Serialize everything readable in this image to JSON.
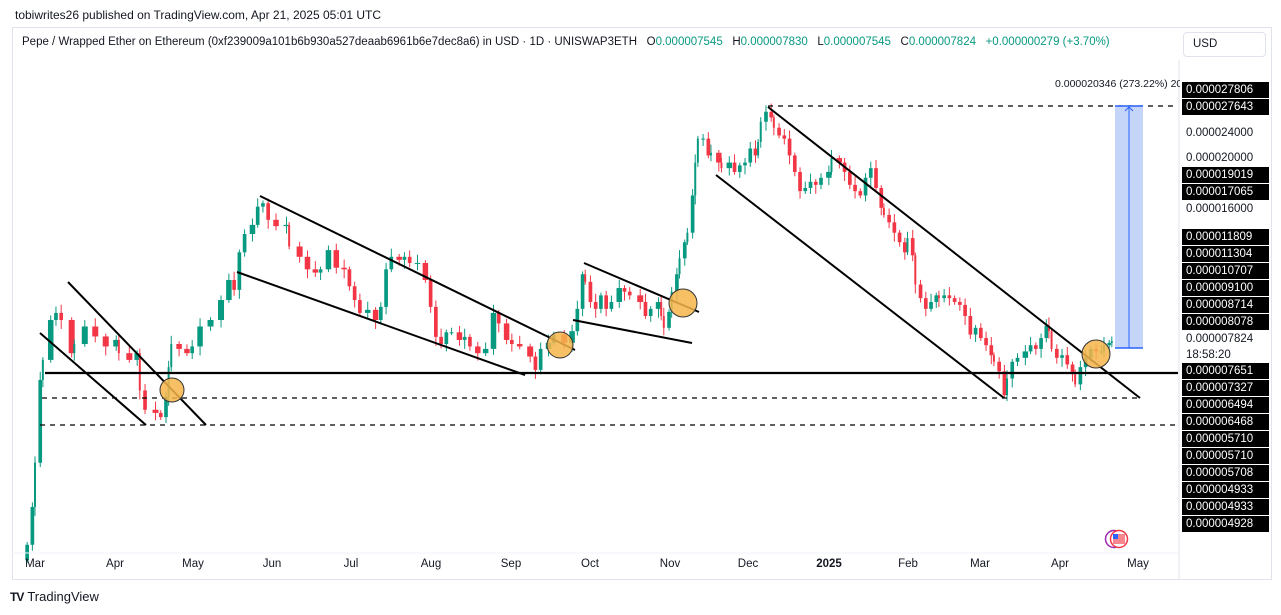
{
  "publish_line": "tobiwrites26 published on TradingView.com, Apr 21, 2025 05:01 UTC",
  "legend": {
    "symbol": "Pepe / Wrapped Ether on Ethereum (0xf239009a101b6b930a527deaab6961b6e7dec8a6) in USD · 1D · UNISWAP3ETH",
    "o_label": "O",
    "o_value": "0.000007545",
    "h_label": "H",
    "h_value": "0.000007830",
    "l_label": "L",
    "l_value": "0.000007545",
    "c_label": "C",
    "c_value": "0.000007824",
    "change": "+0.000000279 (+3.70%)"
  },
  "currency_button": "USD",
  "measure_label": "0.000020346 (273.22%) 20",
  "countdown": "18:58:20",
  "logo_text": "TradingView",
  "colors": {
    "up": "#089981",
    "down": "#f23645",
    "measure_fill": "#c5d5fa",
    "measure_line": "#2962ff",
    "circle": "#f7b54a"
  },
  "chart_data": {
    "type": "candlestick",
    "title": "Pepe / Wrapped Ether on Ethereum in USD · 1D",
    "scale": "log",
    "x_start_date": "2024-03-01",
    "x_ticks": [
      "Mar",
      "Apr",
      "May",
      "Jun",
      "Jul",
      "Aug",
      "Sep",
      "Oct",
      "Nov",
      "Dec",
      "2025",
      "Feb",
      "Mar",
      "Apr",
      "May"
    ],
    "price_axis_labels": [
      {
        "text": "0.000027806",
        "boxed": true
      },
      {
        "text": "0.000027643",
        "boxed": true
      },
      {
        "text": "0.000024000",
        "boxed": false
      },
      {
        "text": "0.000020000",
        "boxed": false
      },
      {
        "text": "0.000019019",
        "boxed": true
      },
      {
        "text": "0.000017065",
        "boxed": true
      },
      {
        "text": "0.000016000",
        "boxed": false
      },
      {
        "text": "0.000011809",
        "boxed": true
      },
      {
        "text": "0.000011304",
        "boxed": true
      },
      {
        "text": "0.000010707",
        "boxed": true
      },
      {
        "text": "0.000009100",
        "boxed": true
      },
      {
        "text": "0.000008714",
        "boxed": true
      },
      {
        "text": "0.000008078",
        "boxed": true
      },
      {
        "text": "0.000007824",
        "boxed": false
      },
      {
        "text": "0.000007651",
        "boxed": true
      },
      {
        "text": "0.000007327",
        "boxed": true
      },
      {
        "text": "0.000006494",
        "boxed": true
      },
      {
        "text": "0.000006468",
        "boxed": true
      },
      {
        "text": "0.000005710",
        "boxed": true
      },
      {
        "text": "0.000005710",
        "boxed": true
      },
      {
        "text": "0.000005708",
        "boxed": true
      },
      {
        "text": "0.000004933",
        "boxed": true
      },
      {
        "text": "0.000004933",
        "boxed": true
      },
      {
        "text": "0.000004928",
        "boxed": true
      }
    ],
    "points_day_close": [
      [
        -3,
        2.62e-06
      ],
      [
        -1,
        3.21e-06
      ],
      [
        0,
        4.07e-06
      ],
      [
        2,
        6.35e-06
      ],
      [
        3,
        7.07e-06
      ],
      [
        6,
        8.76e-06
      ],
      [
        8,
        9.1e-06
      ],
      [
        10,
        8.76e-06
      ],
      [
        14,
        7.33e-06
      ],
      [
        15,
        7.7e-06
      ],
      [
        19,
        8.46e-06
      ],
      [
        23,
        8.02e-06
      ],
      [
        27,
        7.6e-06
      ],
      [
        31,
        7.87e-06
      ],
      [
        32,
        7.33e-06
      ],
      [
        36,
        7.07e-06
      ],
      [
        39,
        7.33e-06
      ],
      [
        40,
        6e-06
      ],
      [
        42,
        5.41e-06
      ],
      [
        46,
        5.32e-06
      ],
      [
        48,
        5.2e-06
      ],
      [
        50,
        5.8e-06
      ],
      [
        51,
        6.8e-06
      ],
      [
        52,
        7.7e-06
      ],
      [
        55,
        7.5e-06
      ],
      [
        58,
        7.33e-06
      ],
      [
        60,
        7.6e-06
      ],
      [
        63,
        8.46e-06
      ],
      [
        67,
        8.76e-06
      ],
      [
        71,
        9.75e-06
      ],
      [
        74,
        1.086e-05
      ],
      [
        76,
        1.03e-05
      ],
      [
        78,
        1.26e-05
      ],
      [
        80,
        1.39e-05
      ],
      [
        83,
        1.46e-05
      ],
      [
        85,
        1.61e-05
      ],
      [
        87,
        1.64e-05
      ],
      [
        89,
        1.5e-05
      ],
      [
        92,
        1.45e-05
      ],
      [
        96,
        1.46e-05
      ],
      [
        97,
        1.3e-05
      ],
      [
        101,
        1.23e-05
      ],
      [
        104,
        1.15e-05
      ],
      [
        107,
        1.13e-05
      ],
      [
        109,
        1.15e-05
      ],
      [
        112,
        1.275e-05
      ],
      [
        115,
        1.16e-05
      ],
      [
        118,
        1.15e-05
      ],
      [
        120,
        1.05e-05
      ],
      [
        122,
        9.75e-06
      ],
      [
        124,
        9.1e-06
      ],
      [
        127,
        9.25e-06
      ],
      [
        130,
        8.76e-06
      ],
      [
        132,
        9.4e-06
      ],
      [
        134,
        1.15e-05
      ],
      [
        136,
        1.23e-05
      ],
      [
        139,
        1.21e-05
      ],
      [
        141,
        1.23e-05
      ],
      [
        143,
        1.19e-05
      ],
      [
        146,
        1.19e-05
      ],
      [
        149,
        1.086e-05
      ],
      [
        151,
        9.4e-06
      ],
      [
        153,
        8e-06
      ],
      [
        155,
        7.7e-06
      ],
      [
        157,
        8.2e-06
      ],
      [
        159,
        8.2e-06
      ],
      [
        162,
        7.87e-06
      ],
      [
        164,
        8e-06
      ],
      [
        166,
        7.6e-06
      ],
      [
        169,
        7.33e-06
      ],
      [
        172,
        7.5e-06
      ],
      [
        175,
        9.1e-06
      ],
      [
        177,
        8.6e-06
      ],
      [
        180,
        7.87e-06
      ],
      [
        182,
        7.7e-06
      ],
      [
        185,
        7.6e-06
      ],
      [
        189,
        7.2e-06
      ],
      [
        191,
        6.7e-06
      ],
      [
        193,
        7.5e-06
      ],
      [
        196,
        7.75e-06
      ],
      [
        198,
        8.1e-06
      ],
      [
        202,
        7.75e-06
      ],
      [
        205,
        8.25e-06
      ],
      [
        207,
        9.3e-06
      ],
      [
        209,
        1.12e-05
      ],
      [
        210,
        1.075e-05
      ],
      [
        212,
        9.65e-06
      ],
      [
        214,
        9.3e-06
      ],
      [
        216,
        1e-05
      ],
      [
        218,
        9.3e-06
      ],
      [
        220,
        9.65e-06
      ],
      [
        223,
        1.04e-05
      ],
      [
        225,
        1.02e-05
      ],
      [
        227,
        1e-05
      ],
      [
        231,
        9.65e-06
      ],
      [
        233,
        8.95e-06
      ],
      [
        235,
        9.3e-06
      ],
      [
        238,
        9.65e-06
      ],
      [
        239,
        8.95e-06
      ],
      [
        240,
        8.4e-06
      ],
      [
        242,
        9.15e-06
      ],
      [
        243,
        1.02e-05
      ],
      [
        245,
        1.12e-05
      ],
      [
        246,
        1.22e-05
      ],
      [
        248,
        1.33e-05
      ],
      [
        249,
        1.4e-05
      ],
      [
        251,
        1.71e-05
      ],
      [
        252,
        2.04e-05
      ],
      [
        253,
        2.32e-05
      ],
      [
        255,
        2.32e-05
      ],
      [
        257,
        2.12e-05
      ],
      [
        258,
        2.15e-05
      ],
      [
        261,
        2.04e-05
      ],
      [
        262,
        1.98e-05
      ],
      [
        265,
        2.04e-05
      ],
      [
        267,
        1.94e-05
      ],
      [
        269,
        2.01e-05
      ],
      [
        271,
        2.04e-05
      ],
      [
        273,
        2.2e-05
      ],
      [
        275,
        2.12e-05
      ],
      [
        276,
        2.28e-05
      ],
      [
        277,
        2.54e-05
      ],
      [
        279,
        2.68e-05
      ],
      [
        281,
        2.6e-05
      ],
      [
        282,
        2.46e-05
      ],
      [
        284,
        2.36e-05
      ],
      [
        286,
        2.32e-05
      ],
      [
        288,
        2.12e-05
      ],
      [
        290,
        1.94e-05
      ],
      [
        292,
        1.75e-05
      ],
      [
        294,
        1.78e-05
      ],
      [
        296,
        1.84e-05
      ],
      [
        298,
        1.81e-05
      ],
      [
        300,
        1.88e-05
      ],
      [
        303,
        1.94e-05
      ],
      [
        304,
        2.09e-05
      ],
      [
        307,
        2.04e-05
      ],
      [
        309,
        1.94e-05
      ],
      [
        311,
        1.81e-05
      ],
      [
        313,
        1.75e-05
      ],
      [
        315,
        1.71e-05
      ],
      [
        317,
        1.88e-05
      ],
      [
        319,
        1.98e-05
      ],
      [
        321,
        1.78e-05
      ],
      [
        323,
        1.6e-05
      ],
      [
        324,
        1.54e-05
      ],
      [
        326,
        1.48e-05
      ],
      [
        328,
        1.4e-05
      ],
      [
        330,
        1.33e-05
      ],
      [
        332,
        1.26e-05
      ],
      [
        333,
        1.36e-05
      ],
      [
        335,
        1.24e-05
      ],
      [
        336,
        1.06e-05
      ],
      [
        338,
        9.85e-06
      ],
      [
        340,
        9.3e-06
      ],
      [
        342,
        9.65e-06
      ],
      [
        344,
        1e-05
      ],
      [
        345,
        9.85e-06
      ],
      [
        347,
        1e-05
      ],
      [
        349,
        9.85e-06
      ],
      [
        351,
        9.65e-06
      ],
      [
        353,
        9.5e-06
      ],
      [
        355,
        8.95e-06
      ],
      [
        357,
        8.1e-06
      ],
      [
        359,
        8.4e-06
      ],
      [
        361,
        7.95e-06
      ],
      [
        363,
        7.65e-06
      ],
      [
        365,
        7.25e-06
      ],
      [
        366,
        7e-06
      ],
      [
        368,
        6.65e-06
      ],
      [
        370,
        5.85e-06
      ],
      [
        371,
        6.4e-06
      ],
      [
        373,
        7e-06
      ],
      [
        375,
        7.15e-06
      ],
      [
        378,
        7.4e-06
      ],
      [
        380,
        7.65e-06
      ],
      [
        382,
        7.5e-06
      ],
      [
        384,
        7.95e-06
      ],
      [
        386,
        8.5e-06
      ],
      [
        387,
        8.25e-06
      ],
      [
        388,
        7.5e-06
      ],
      [
        390,
        7.15e-06
      ],
      [
        392,
        7.25e-06
      ],
      [
        394,
        6.9e-06
      ],
      [
        396,
        6.55e-06
      ],
      [
        397,
        6.2e-06
      ],
      [
        399,
        6.8e-06
      ],
      [
        401,
        7.15e-06
      ],
      [
        403,
        7.5e-06
      ],
      [
        405,
        7.4e-06
      ],
      [
        407,
        7.4e-06
      ],
      [
        408,
        7.65e-06
      ],
      [
        410,
        7.75e-06
      ],
      [
        411,
        7.824e-06
      ]
    ]
  }
}
